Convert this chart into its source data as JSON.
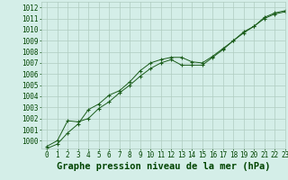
{
  "title": "Graphe pression niveau de la mer (hPa)",
  "bg_color": "#d4eee8",
  "grid_color": "#b0ccc0",
  "line_color": "#1a5c1a",
  "marker_color": "#1a5c1a",
  "xlim": [
    -0.5,
    23
  ],
  "ylim": [
    999.3,
    1012.5
  ],
  "yticks": [
    1000,
    1001,
    1002,
    1003,
    1004,
    1005,
    1006,
    1007,
    1008,
    1009,
    1010,
    1011,
    1012
  ],
  "xticks": [
    0,
    1,
    2,
    3,
    4,
    5,
    6,
    7,
    8,
    9,
    10,
    11,
    12,
    13,
    14,
    15,
    16,
    17,
    18,
    19,
    20,
    21,
    22,
    23
  ],
  "series1_x": [
    0,
    1,
    2,
    3,
    4,
    5,
    6,
    7,
    8,
    9,
    10,
    11,
    12,
    13,
    14,
    15,
    16,
    17,
    18,
    19,
    20,
    21,
    22,
    23
  ],
  "series1_y": [
    999.5,
    1000.0,
    1001.8,
    1001.7,
    1002.0,
    1002.9,
    1003.5,
    1004.3,
    1005.0,
    1005.8,
    1006.5,
    1007.0,
    1007.3,
    1006.8,
    1006.8,
    1006.8,
    1007.5,
    1008.2,
    1009.0,
    1009.7,
    1010.3,
    1011.0,
    1011.4,
    1011.6
  ],
  "series2_x": [
    0,
    1,
    2,
    3,
    4,
    5,
    6,
    7,
    8,
    9,
    10,
    11,
    12,
    13,
    14,
    15,
    16,
    17,
    18,
    19,
    20,
    21,
    22,
    23
  ],
  "series2_y": [
    999.3,
    999.7,
    1000.7,
    1001.5,
    1002.8,
    1003.3,
    1004.1,
    1004.5,
    1005.3,
    1006.3,
    1007.0,
    1007.3,
    1007.5,
    1007.5,
    1007.1,
    1007.0,
    1007.6,
    1008.3,
    1009.0,
    1009.8,
    1010.3,
    1011.1,
    1011.5,
    1011.7
  ],
  "title_color": "#004400",
  "title_fontsize": 7.5,
  "tick_fontsize": 5.5
}
